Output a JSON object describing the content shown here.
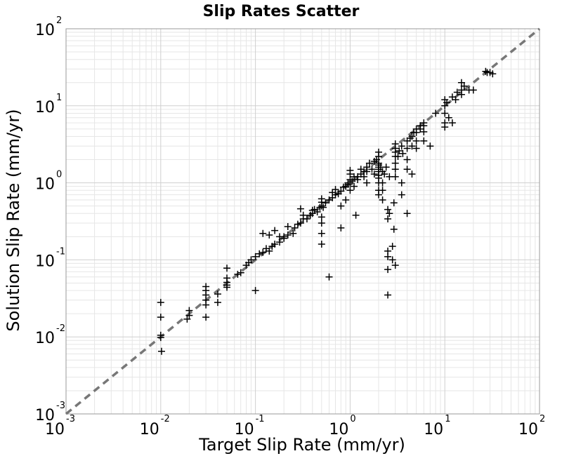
{
  "chart_data": {
    "type": "scatter",
    "title": "Slip Rates Scatter",
    "xlabel": "Target Slip Rate (mm/yr)",
    "ylabel": "Solution Slip Rate (mm/yr)",
    "xscale": "log",
    "yscale": "log",
    "xlim": [
      0.001,
      100
    ],
    "ylim": [
      0.001,
      100
    ],
    "grid": true,
    "marker": "+",
    "marker_color": "#000000",
    "reference_line": {
      "style": "dashed",
      "color": "#777777",
      "from": [
        0.001,
        0.001
      ],
      "to": [
        100,
        100
      ]
    },
    "x_ticks": [
      {
        "base": "10",
        "exp": "-3",
        "value": 0.001
      },
      {
        "base": "10",
        "exp": "-2",
        "value": 0.01
      },
      {
        "base": "10",
        "exp": "-1",
        "value": 0.1
      },
      {
        "base": "10",
        "exp": "0",
        "value": 1
      },
      {
        "base": "10",
        "exp": "1",
        "value": 10
      },
      {
        "base": "10",
        "exp": "2",
        "value": 100
      }
    ],
    "y_ticks": [
      {
        "base": "10",
        "exp": "-3",
        "value": 0.001
      },
      {
        "base": "10",
        "exp": "-2",
        "value": 0.01
      },
      {
        "base": "10",
        "exp": "-1",
        "value": 0.1
      },
      {
        "base": "10",
        "exp": "0",
        "value": 1
      },
      {
        "base": "10",
        "exp": "1",
        "value": 10
      },
      {
        "base": "10",
        "exp": "2",
        "value": 100
      }
    ],
    "points": [
      [
        0.01,
        0.028
      ],
      [
        0.01,
        0.018
      ],
      [
        0.01,
        0.0105
      ],
      [
        0.01,
        0.0098
      ],
      [
        0.0102,
        0.0065
      ],
      [
        0.02,
        0.022
      ],
      [
        0.02,
        0.019
      ],
      [
        0.019,
        0.017
      ],
      [
        0.03,
        0.045
      ],
      [
        0.03,
        0.04
      ],
      [
        0.03,
        0.035
      ],
      [
        0.03,
        0.03
      ],
      [
        0.03,
        0.026
      ],
      [
        0.03,
        0.018
      ],
      [
        0.04,
        0.036
      ],
      [
        0.04,
        0.028
      ],
      [
        0.05,
        0.078
      ],
      [
        0.05,
        0.058
      ],
      [
        0.05,
        0.051
      ],
      [
        0.05,
        0.047
      ],
      [
        0.05,
        0.044
      ],
      [
        0.065,
        0.065
      ],
      [
        0.07,
        0.068
      ],
      [
        0.08,
        0.085
      ],
      [
        0.085,
        0.092
      ],
      [
        0.09,
        0.1
      ],
      [
        0.1,
        0.04
      ],
      [
        0.1,
        0.11
      ],
      [
        0.11,
        0.12
      ],
      [
        0.12,
        0.125
      ],
      [
        0.13,
        0.14
      ],
      [
        0.14,
        0.13
      ],
      [
        0.15,
        0.15
      ],
      [
        0.12,
        0.22
      ],
      [
        0.14,
        0.21
      ],
      [
        0.16,
        0.24
      ],
      [
        0.18,
        0.2
      ],
      [
        0.2,
        0.19
      ],
      [
        0.16,
        0.16
      ],
      [
        0.18,
        0.17
      ],
      [
        0.2,
        0.2
      ],
      [
        0.22,
        0.21
      ],
      [
        0.25,
        0.22
      ],
      [
        0.22,
        0.27
      ],
      [
        0.26,
        0.26
      ],
      [
        0.28,
        0.29
      ],
      [
        0.3,
        0.3
      ],
      [
        0.32,
        0.34
      ],
      [
        0.3,
        0.46
      ],
      [
        0.32,
        0.38
      ],
      [
        0.35,
        0.34
      ],
      [
        0.38,
        0.38
      ],
      [
        0.4,
        0.4
      ],
      [
        0.4,
        0.44
      ],
      [
        0.42,
        0.45
      ],
      [
        0.45,
        0.42
      ],
      [
        0.48,
        0.48
      ],
      [
        0.5,
        0.5
      ],
      [
        0.5,
        0.62
      ],
      [
        0.5,
        0.56
      ],
      [
        0.5,
        0.36
      ],
      [
        0.5,
        0.3
      ],
      [
        0.5,
        0.22
      ],
      [
        0.5,
        0.16
      ],
      [
        0.52,
        0.48
      ],
      [
        0.55,
        0.55
      ],
      [
        0.6,
        0.6
      ],
      [
        0.6,
        0.06
      ],
      [
        0.65,
        0.64
      ],
      [
        0.65,
        0.75
      ],
      [
        0.7,
        0.7
      ],
      [
        0.7,
        0.82
      ],
      [
        0.75,
        0.72
      ],
      [
        0.8,
        0.78
      ],
      [
        0.8,
        0.5
      ],
      [
        0.8,
        0.26
      ],
      [
        0.85,
        0.88
      ],
      [
        0.9,
        0.6
      ],
      [
        0.9,
        0.9
      ],
      [
        0.95,
        0.95
      ],
      [
        0.95,
        1.0
      ],
      [
        1.0,
        1.0
      ],
      [
        1.0,
        0.8
      ],
      [
        1.0,
        1.1
      ],
      [
        1.0,
        1.3
      ],
      [
        1.0,
        1.45
      ],
      [
        1.05,
        1.05
      ],
      [
        1.1,
        1.2
      ],
      [
        1.1,
        0.9
      ],
      [
        1.15,
        0.38
      ],
      [
        1.2,
        1.2
      ],
      [
        1.2,
        1.1
      ],
      [
        1.3,
        1.3
      ],
      [
        1.3,
        1.5
      ],
      [
        1.4,
        1.4
      ],
      [
        1.4,
        1.2
      ],
      [
        1.5,
        1.6
      ],
      [
        1.5,
        1.0
      ],
      [
        1.5,
        1.4
      ],
      [
        1.6,
        1.8
      ],
      [
        1.7,
        1.5
      ],
      [
        1.8,
        1.9
      ],
      [
        1.8,
        1.3
      ],
      [
        1.9,
        2.0
      ],
      [
        2.0,
        1.8
      ],
      [
        2.0,
        1.7
      ],
      [
        2.0,
        1.6
      ],
      [
        2.0,
        1.5
      ],
      [
        2.0,
        1.4
      ],
      [
        2.0,
        1.25
      ],
      [
        2.0,
        1.15
      ],
      [
        2.0,
        0.8
      ],
      [
        2.0,
        0.7
      ],
      [
        2.0,
        2.2
      ],
      [
        2.0,
        2.5
      ],
      [
        2.0,
        1.0
      ],
      [
        2.1,
        1.6
      ],
      [
        2.2,
        1.4
      ],
      [
        2.2,
        1.0
      ],
      [
        2.2,
        0.8
      ],
      [
        2.2,
        0.6
      ],
      [
        2.3,
        1.3
      ],
      [
        2.4,
        1.6
      ],
      [
        2.5,
        0.13
      ],
      [
        2.5,
        0.075
      ],
      [
        2.5,
        0.035
      ],
      [
        2.5,
        0.11
      ],
      [
        2.5,
        0.34
      ],
      [
        2.5,
        0.45
      ],
      [
        2.6,
        0.4
      ],
      [
        2.6,
        1.2
      ],
      [
        2.8,
        0.15
      ],
      [
        2.8,
        0.1
      ],
      [
        2.9,
        0.25
      ],
      [
        2.9,
        0.55
      ],
      [
        3.0,
        0.085
      ],
      [
        3.0,
        2.8
      ],
      [
        3.0,
        3.2
      ],
      [
        3.0,
        2.5
      ],
      [
        3.0,
        2.2
      ],
      [
        3.0,
        1.8
      ],
      [
        3.0,
        1.5
      ],
      [
        3.0,
        1.2
      ],
      [
        3.2,
        2.2
      ],
      [
        3.3,
        2.6
      ],
      [
        3.5,
        1.0
      ],
      [
        3.5,
        0.7
      ],
      [
        3.5,
        3.0
      ],
      [
        3.6,
        2.4
      ],
      [
        4.0,
        1.5
      ],
      [
        4.0,
        3.5
      ],
      [
        4.0,
        2.8
      ],
      [
        4.0,
        2.0
      ],
      [
        4.0,
        0.4
      ],
      [
        4.3,
        3.8
      ],
      [
        4.5,
        4.0
      ],
      [
        4.5,
        3.0
      ],
      [
        4.5,
        1.3
      ],
      [
        4.7,
        4.5
      ],
      [
        5.0,
        5.0
      ],
      [
        5.0,
        4.5
      ],
      [
        5.0,
        3.5
      ],
      [
        5.0,
        2.8
      ],
      [
        5.5,
        5.5
      ],
      [
        5.5,
        5.0
      ],
      [
        6.0,
        6.0
      ],
      [
        6.0,
        5.5
      ],
      [
        6.0,
        4.6
      ],
      [
        6.0,
        3.5
      ],
      [
        7.0,
        3.0
      ],
      [
        8.0,
        8.0
      ],
      [
        10.0,
        10.0
      ],
      [
        10.0,
        12.0
      ],
      [
        10.0,
        8.0
      ],
      [
        10.0,
        6.0
      ],
      [
        10.0,
        5.3
      ],
      [
        10.5,
        11.0
      ],
      [
        11.0,
        7.0
      ],
      [
        12.0,
        13.0
      ],
      [
        12.0,
        6.0
      ],
      [
        13.0,
        12.0
      ],
      [
        13.5,
        15.0
      ],
      [
        15.0,
        16.0
      ],
      [
        15.0,
        14.0
      ],
      [
        15.0,
        20.0
      ],
      [
        16.0,
        18.0
      ],
      [
        18.0,
        16.0
      ],
      [
        20.0,
        16.0
      ],
      [
        27.0,
        28.0
      ],
      [
        28.0,
        27.0
      ],
      [
        30.0,
        27.0
      ],
      [
        32.0,
        26.0
      ]
    ]
  }
}
